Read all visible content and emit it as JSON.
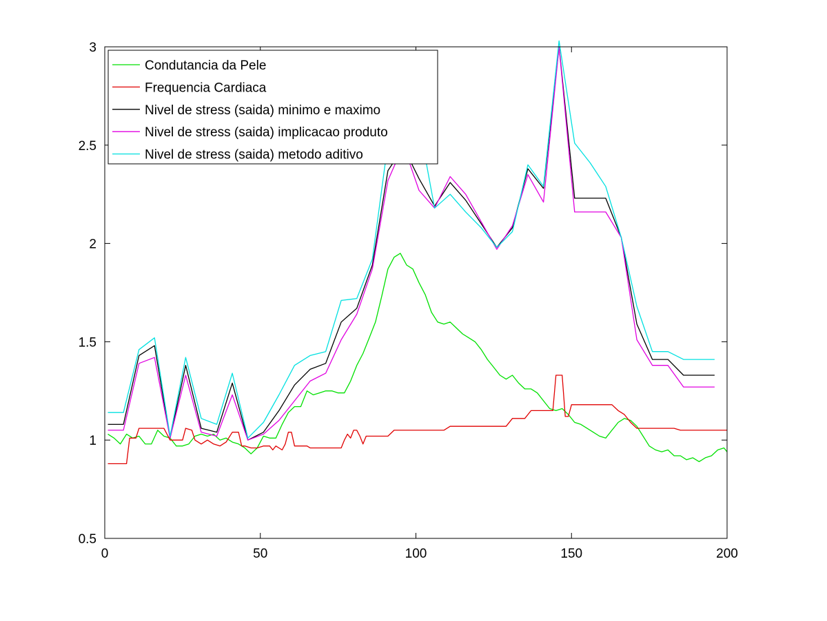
{
  "chart_data": {
    "type": "line",
    "title": "",
    "xlabel": "",
    "ylabel": "",
    "xlim": [
      0,
      200
    ],
    "ylim": [
      0.5,
      3
    ],
    "xticks": [
      0,
      50,
      100,
      150,
      200
    ],
    "yticks": [
      0.5,
      1,
      1.5,
      2,
      2.5,
      3
    ],
    "xtick_labels": [
      "0",
      "50",
      "100",
      "150",
      "200"
    ],
    "ytick_labels": [
      "0.5",
      "1",
      "1.5",
      "2",
      "2.5",
      "3"
    ],
    "grid": false,
    "legend_position": "top-left",
    "series": [
      {
        "name": "Condutancia da Pele",
        "color": "#00e000",
        "x": [
          1,
          3,
          5,
          7,
          9,
          11,
          13,
          15,
          17,
          19,
          21,
          23,
          25,
          27,
          29,
          31,
          33,
          35,
          37,
          39,
          41,
          43,
          45,
          47,
          49,
          51,
          53,
          55,
          57,
          59,
          61,
          63,
          65,
          67,
          69,
          71,
          73,
          75,
          77,
          79,
          81,
          83,
          85,
          87,
          89,
          91,
          93,
          95,
          97,
          99,
          101,
          103,
          105,
          107,
          109,
          111,
          113,
          115,
          117,
          119,
          121,
          123,
          125,
          127,
          129,
          131,
          133,
          135,
          137,
          139,
          141,
          143,
          145,
          147,
          149,
          151,
          153,
          155,
          157,
          159,
          161,
          163,
          165,
          167,
          169,
          171,
          173,
          175,
          177,
          179,
          181,
          183,
          185,
          187,
          189,
          191,
          193,
          195,
          197,
          199,
          200
        ],
        "y": [
          1.03,
          1.01,
          0.98,
          1.03,
          1.01,
          1.02,
          0.98,
          0.98,
          1.05,
          1.02,
          1.01,
          0.97,
          0.97,
          0.98,
          1.02,
          1.03,
          1.02,
          1.03,
          1.0,
          1.01,
          0.99,
          0.98,
          0.96,
          0.93,
          0.96,
          1.02,
          1.01,
          1.01,
          1.08,
          1.14,
          1.17,
          1.17,
          1.25,
          1.23,
          1.24,
          1.25,
          1.25,
          1.24,
          1.24,
          1.3,
          1.38,
          1.44,
          1.52,
          1.6,
          1.73,
          1.87,
          1.93,
          1.95,
          1.89,
          1.87,
          1.8,
          1.74,
          1.65,
          1.6,
          1.59,
          1.6,
          1.57,
          1.54,
          1.52,
          1.5,
          1.46,
          1.41,
          1.37,
          1.33,
          1.31,
          1.33,
          1.29,
          1.26,
          1.26,
          1.24,
          1.2,
          1.16,
          1.15,
          1.16,
          1.13,
          1.09,
          1.08,
          1.06,
          1.04,
          1.02,
          1.01,
          1.05,
          1.09,
          1.11,
          1.1,
          1.07,
          1.02,
          0.97,
          0.95,
          0.94,
          0.95,
          0.92,
          0.92,
          0.9,
          0.91,
          0.89,
          0.91,
          0.92,
          0.95,
          0.96,
          0.94
        ]
      },
      {
        "name": "Frequencia Cardiaca",
        "color": "#e00000",
        "x": [
          1,
          6,
          7,
          8,
          10,
          11,
          13,
          15,
          17,
          19,
          21,
          23,
          25,
          26,
          28,
          29,
          31,
          33,
          35,
          37,
          39,
          41,
          42,
          43,
          44,
          45,
          47,
          49,
          51,
          53,
          54,
          55,
          57,
          58,
          59,
          60,
          61,
          63,
          65,
          66,
          68,
          70,
          72,
          74,
          75,
          76,
          77,
          78,
          79,
          80,
          81,
          82,
          83,
          84,
          85,
          87,
          89,
          91,
          93,
          95,
          97,
          99,
          101,
          103,
          105,
          107,
          109,
          111,
          113,
          115,
          117,
          119,
          121,
          123,
          125,
          127,
          129,
          131,
          133,
          135,
          137,
          139,
          141,
          143,
          144,
          145,
          146,
          147,
          148,
          149,
          150,
          151,
          153,
          155,
          157,
          159,
          161,
          163,
          165,
          167,
          169,
          171,
          173,
          175,
          177,
          179,
          181,
          183,
          185,
          187,
          189,
          191,
          193,
          195,
          197,
          199,
          200
        ],
        "y": [
          0.88,
          0.88,
          0.88,
          1.01,
          1.01,
          1.06,
          1.06,
          1.06,
          1.06,
          1.06,
          1.0,
          1.0,
          1.0,
          1.06,
          1.05,
          1.0,
          0.98,
          1.0,
          0.98,
          0.97,
          0.99,
          1.04,
          1.04,
          1.04,
          0.97,
          0.97,
          0.96,
          0.96,
          0.97,
          0.97,
          0.95,
          0.97,
          0.95,
          0.98,
          1.04,
          1.04,
          0.97,
          0.97,
          0.97,
          0.96,
          0.96,
          0.96,
          0.96,
          0.96,
          0.96,
          0.96,
          1.0,
          1.03,
          1.01,
          1.05,
          1.05,
          1.02,
          0.98,
          1.02,
          1.02,
          1.02,
          1.02,
          1.02,
          1.05,
          1.05,
          1.05,
          1.05,
          1.05,
          1.05,
          1.05,
          1.05,
          1.05,
          1.07,
          1.07,
          1.07,
          1.07,
          1.07,
          1.07,
          1.07,
          1.07,
          1.07,
          1.07,
          1.11,
          1.11,
          1.11,
          1.15,
          1.15,
          1.15,
          1.15,
          1.15,
          1.33,
          1.33,
          1.33,
          1.12,
          1.12,
          1.18,
          1.18,
          1.18,
          1.18,
          1.18,
          1.18,
          1.18,
          1.18,
          1.15,
          1.13,
          1.09,
          1.06,
          1.06,
          1.06,
          1.06,
          1.06,
          1.06,
          1.06,
          1.05,
          1.05,
          1.05,
          1.05,
          1.05,
          1.05,
          1.05,
          1.05,
          1.05
        ]
      },
      {
        "name": "Nivel de stress (saida) minimo e maximo",
        "color": "#000000",
        "x": [
          1,
          6,
          11,
          16,
          21,
          26,
          31,
          36,
          41,
          46,
          51,
          56,
          61,
          66,
          71,
          76,
          81,
          86,
          91,
          96,
          101,
          106,
          111,
          116,
          121,
          126,
          131,
          136,
          141,
          146,
          151,
          156,
          161,
          166,
          171,
          176,
          181,
          186,
          191,
          196
        ],
        "y": [
          1.08,
          1.08,
          1.43,
          1.48,
          1.01,
          1.38,
          1.06,
          1.04,
          1.29,
          1.0,
          1.04,
          1.15,
          1.28,
          1.36,
          1.39,
          1.6,
          1.67,
          1.89,
          2.37,
          2.49,
          2.33,
          2.19,
          2.31,
          2.22,
          2.1,
          1.98,
          2.08,
          2.38,
          2.28,
          3.0,
          2.23,
          2.23,
          2.23,
          2.03,
          1.59,
          1.41,
          1.41,
          1.33,
          1.33,
          1.33
        ]
      },
      {
        "name": "Nivel de stress (saida) implicacao produto",
        "color": "#e000e0",
        "x": [
          1,
          6,
          11,
          16,
          21,
          26,
          31,
          36,
          41,
          46,
          51,
          56,
          61,
          66,
          71,
          76,
          81,
          86,
          91,
          96,
          101,
          106,
          111,
          116,
          121,
          126,
          131,
          136,
          141,
          146,
          151,
          156,
          161,
          166,
          171,
          176,
          181,
          186,
          191,
          196
        ],
        "y": [
          1.05,
          1.05,
          1.39,
          1.42,
          1.01,
          1.33,
          1.04,
          1.02,
          1.23,
          1.0,
          1.03,
          1.1,
          1.2,
          1.3,
          1.34,
          1.51,
          1.64,
          1.87,
          2.32,
          2.5,
          2.27,
          2.18,
          2.34,
          2.25,
          2.11,
          1.97,
          2.09,
          2.35,
          2.21,
          3.0,
          2.16,
          2.16,
          2.16,
          2.03,
          1.51,
          1.38,
          1.38,
          1.27,
          1.27,
          1.27
        ]
      },
      {
        "name": "Nivel de stress (saida) metodo aditivo",
        "color": "#00e0e0",
        "x": [
          1,
          6,
          11,
          16,
          21,
          26,
          31,
          36,
          41,
          46,
          51,
          56,
          61,
          66,
          71,
          76,
          81,
          86,
          91,
          96,
          101,
          106,
          111,
          116,
          121,
          126,
          131,
          136,
          141,
          146,
          151,
          156,
          161,
          166,
          171,
          176,
          181,
          186,
          191,
          196
        ],
        "y": [
          1.14,
          1.14,
          1.46,
          1.52,
          1.02,
          1.42,
          1.11,
          1.08,
          1.34,
          1.01,
          1.09,
          1.23,
          1.38,
          1.43,
          1.45,
          1.71,
          1.72,
          1.92,
          2.51,
          2.71,
          2.61,
          2.18,
          2.25,
          2.16,
          2.08,
          1.98,
          2.06,
          2.4,
          2.29,
          3.03,
          2.51,
          2.41,
          2.29,
          2.03,
          1.68,
          1.45,
          1.45,
          1.41,
          1.41,
          1.41
        ]
      }
    ]
  }
}
